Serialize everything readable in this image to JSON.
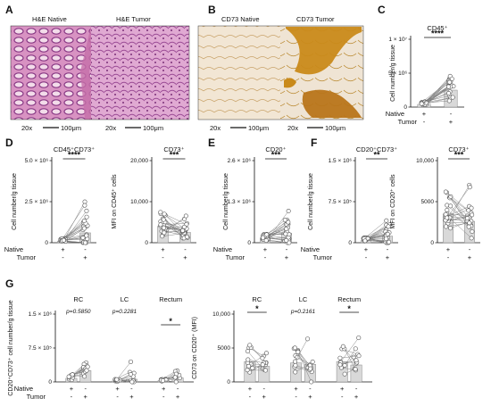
{
  "panel_labels": [
    "A",
    "B",
    "C",
    "D",
    "E",
    "F",
    "G"
  ],
  "panel_a": {
    "image_titles": [
      "H&E Native",
      "H&E Tumor"
    ],
    "magnifications": [
      "20x",
      "20x"
    ],
    "scalebars": [
      "100μm",
      "100μm"
    ]
  },
  "panel_b": {
    "image_titles": [
      "CD73 Native",
      "CD73 Tumor"
    ],
    "magnifications": [
      "20x",
      "20x"
    ],
    "scalebars": [
      "100μm",
      "100μm"
    ]
  },
  "conditions": {
    "rows": [
      "Native",
      "Tumor"
    ],
    "native_marks": [
      "+",
      "-"
    ],
    "tumor_marks": [
      "-",
      "+"
    ]
  },
  "colors": {
    "he_stain": "#c86fa8",
    "cd73_stain": "#c98a1a",
    "bar_fill": "#d9d9d9",
    "point": "#555555"
  },
  "chart_data": [
    {
      "panel": "C",
      "type": "bar",
      "title": "CD45⁺",
      "ylabel": "Cell number/g tissue",
      "yticks": [
        "0",
        "5 × 10⁶",
        "1 × 10⁷"
      ],
      "ylim": [
        0,
        10000000
      ],
      "categories": [
        "Native",
        "Tumor"
      ],
      "values": [
        400000,
        2500000
      ],
      "significance": "****"
    },
    {
      "panel": "D",
      "type": "bar",
      "title": "CD45⁺CD73⁺",
      "ylabel": "Cell number/g tissue",
      "yticks": [
        "0",
        "2.5 × 10⁶",
        "5.0 × 10⁶"
      ],
      "ylim": [
        0,
        5000000
      ],
      "categories": [
        "Native",
        "Tumor"
      ],
      "values": [
        100000,
        600000
      ],
      "significance": "****"
    },
    {
      "panel": "D",
      "type": "bar",
      "title": "CD73⁺",
      "ylabel": "MFI on CD45⁺ cells",
      "yticks": [
        "0",
        "10,000",
        "20,000"
      ],
      "ylim": [
        0,
        20000
      ],
      "categories": [
        "Native",
        "Tumor"
      ],
      "values": [
        4000,
        2500
      ],
      "significance": "***"
    },
    {
      "panel": "E",
      "type": "bar",
      "title": "CD20⁺",
      "ylabel": "Cell number/g tissue",
      "yticks": [
        "0",
        "1.3 × 10⁶",
        "2.6 × 10⁶"
      ],
      "ylim": [
        0,
        2600000
      ],
      "categories": [
        "Native",
        "Tumor"
      ],
      "values": [
        150000,
        300000
      ],
      "significance": "***"
    },
    {
      "panel": "F",
      "type": "bar",
      "title": "CD20⁺CD73⁺",
      "ylabel": "Cell number/g tissue",
      "yticks": [
        "0",
        "7.5 × 10⁵",
        "1.5 × 10⁶"
      ],
      "ylim": [
        0,
        1500000
      ],
      "categories": [
        "Native",
        "Tumor"
      ],
      "values": [
        40000,
        120000
      ],
      "significance": "**"
    },
    {
      "panel": "F",
      "type": "bar",
      "title": "CD73⁺",
      "ylabel": "MFI on CD20⁺ cells",
      "yticks": [
        "0",
        "5000",
        "10,000"
      ],
      "ylim": [
        0,
        10000
      ],
      "categories": [
        "Native",
        "Tumor"
      ],
      "values": [
        3500,
        2600
      ],
      "significance": "***"
    },
    {
      "panel": "G",
      "type": "bar",
      "ylabel": "CD20⁺CD73⁺ cell number/g tissue",
      "yticks": [
        "0",
        "7.5 × 10⁵",
        "1.5 × 10⁶"
      ],
      "ylim": [
        0,
        1500000
      ],
      "groups": [
        "RC",
        "LC",
        "Rectum"
      ],
      "categories": [
        "Native",
        "Tumor",
        "Native",
        "Tumor",
        "Native",
        "Tumor"
      ],
      "values": [
        80000,
        250000,
        20000,
        60000,
        30000,
        90000
      ],
      "annotations": [
        "p=0.5850",
        "p=0.2281",
        "*"
      ]
    },
    {
      "panel": "G",
      "type": "bar",
      "ylabel": "CD73 on CD20⁺ (MFI)",
      "yticks": [
        "0",
        "5000",
        "10,000"
      ],
      "ylim": [
        0,
        10000
      ],
      "groups": [
        "RC",
        "LC",
        "Rectum"
      ],
      "categories": [
        "Native",
        "Tumor",
        "Native",
        "Tumor",
        "Native",
        "Tumor"
      ],
      "values": [
        3000,
        2300,
        2800,
        2600,
        3000,
        2500
      ],
      "annotations": [
        "*",
        "p=0.2161",
        "*"
      ]
    }
  ]
}
